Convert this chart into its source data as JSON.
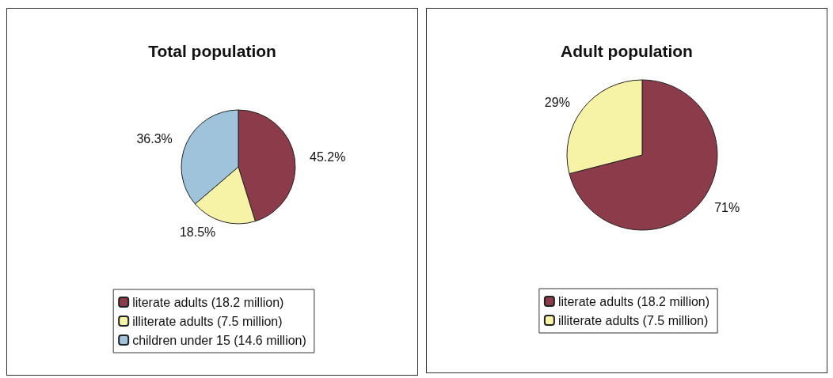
{
  "chart_data": [
    {
      "type": "pie",
      "title": "Total population",
      "categories": [
        "literate adults (18.2 million)",
        "illiterate adults (7.5 million)",
        "children under 15 (14.6 million)"
      ],
      "values": [
        45.2,
        18.5,
        36.3
      ],
      "colors": [
        "#8c3b4b",
        "#f7f3a6",
        "#9ec3da"
      ],
      "value_labels": [
        "45.2%",
        "18.5%",
        "36.3%"
      ],
      "legend": "bottom"
    },
    {
      "type": "pie",
      "title": "Adult population",
      "categories": [
        "literate adults (18.2 million)",
        "illiterate adults (7.5 million)"
      ],
      "values": [
        71,
        29
      ],
      "colors": [
        "#8c3b4b",
        "#f7f3a6"
      ],
      "value_labels": [
        "71%",
        "29%"
      ],
      "legend": "bottom"
    }
  ]
}
